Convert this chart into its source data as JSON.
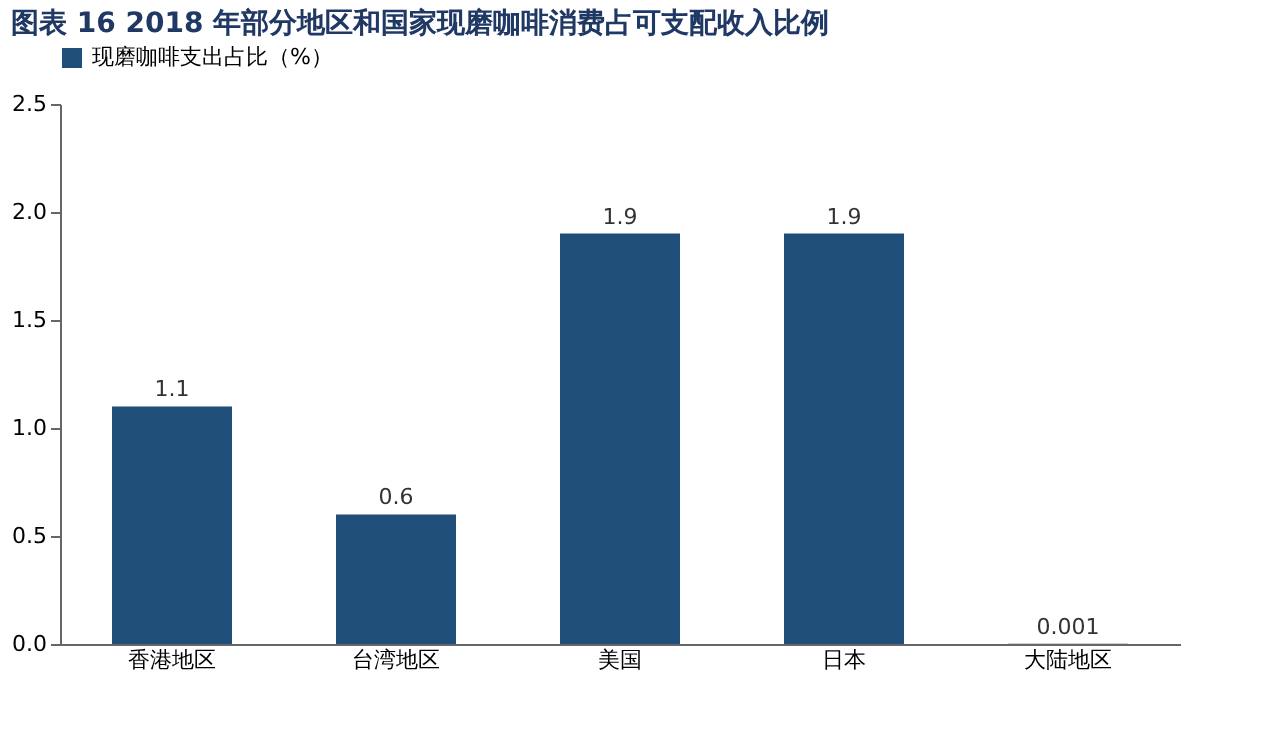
{
  "chart_data": {
    "type": "bar",
    "title": "图表 16    2018 年部分地区和国家现磨咖啡消费占可支配收入比例",
    "categories": [
      "香港地区",
      "台湾地区",
      "美国",
      "日本",
      "大陆地区"
    ],
    "series": [
      {
        "name": "现磨咖啡支出占比（%）",
        "color": "#1f4e79",
        "values": [
          1.1,
          0.6,
          1.9,
          1.9,
          0.001
        ]
      }
    ],
    "ylim": [
      0,
      2.5
    ],
    "yticks": [
      {
        "value": 0,
        "label": "0.0"
      },
      {
        "value": 0.5,
        "label": "0.5"
      },
      {
        "value": 1,
        "label": "1.0"
      },
      {
        "value": 1.5,
        "label": "1.5"
      },
      {
        "value": 2,
        "label": "2.0"
      },
      {
        "value": 2.5,
        "label": "2.5"
      }
    ],
    "data_labels": true,
    "grid": false,
    "legend": "top"
  }
}
